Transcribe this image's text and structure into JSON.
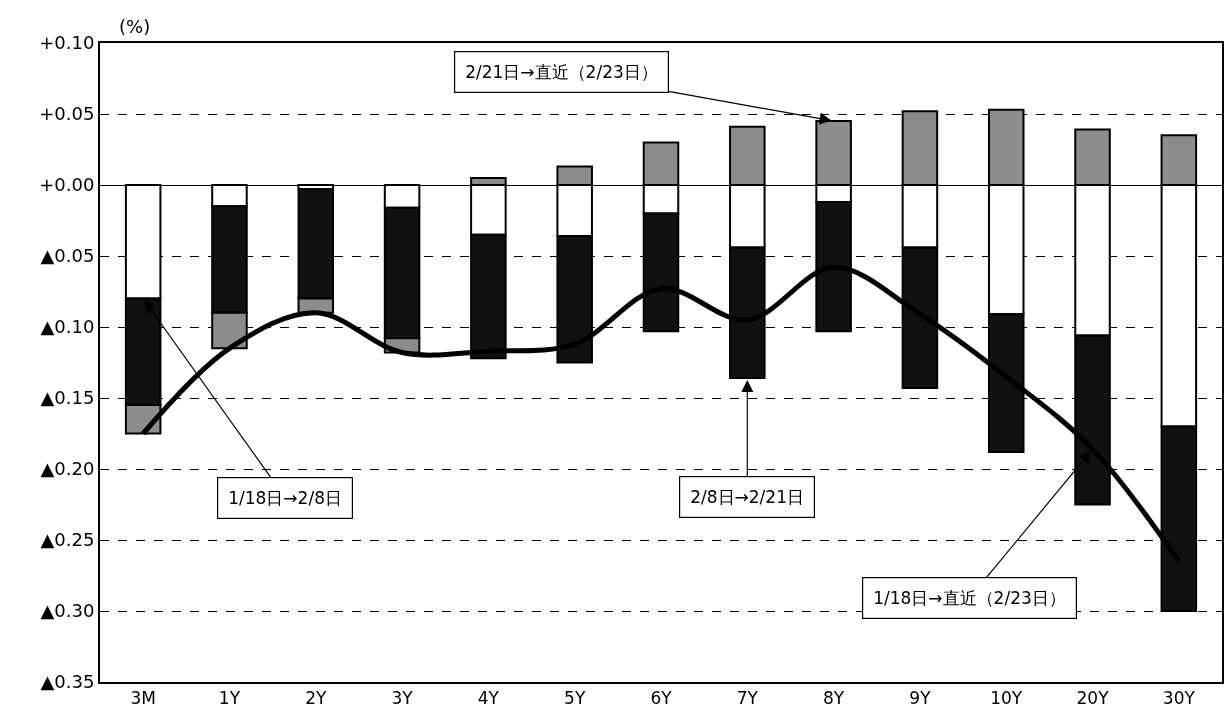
{
  "chart_data": {
    "type": "bar",
    "stacked": true,
    "ylabel": "(%)",
    "categories": [
      "3M",
      "1Y",
      "2Y",
      "3Y",
      "4Y",
      "5Y",
      "6Y",
      "7Y",
      "8Y",
      "9Y",
      "10Y",
      "20Y",
      "30Y"
    ],
    "series": [
      {
        "color": "#ffffff",
        "values": [
          -0.08,
          -0.015,
          -0.003,
          -0.016,
          -0.035,
          -0.036,
          -0.02,
          -0.044,
          -0.012,
          -0.044,
          -0.091,
          -0.106,
          -0.17
        ]
      },
      {
        "color": "#111111",
        "values": [
          -0.075,
          -0.075,
          -0.077,
          -0.092,
          -0.087,
          -0.089,
          -0.083,
          -0.092,
          -0.091,
          -0.099,
          -0.097,
          -0.119,
          -0.13
        ]
      },
      {
        "color": "#8c8c8c",
        "values": [
          -0.02,
          -0.025,
          -0.01,
          -0.01,
          0.005,
          0.013,
          0.03,
          0.041,
          0.045,
          0.052,
          0.053,
          0.039,
          0.035
        ]
      },
      {
        "type": "line",
        "color": "#000000",
        "values": [
          -0.175,
          -0.115,
          -0.09,
          -0.118,
          -0.117,
          -0.112,
          -0.073,
          -0.095,
          -0.058,
          -0.091,
          -0.135,
          -0.186,
          -0.265
        ]
      }
    ],
    "ylim": [
      -0.35,
      0.1
    ],
    "yticks": [
      {
        "value": 0.1,
        "label": "+0.10"
      },
      {
        "value": 0.05,
        "label": "+0.05"
      },
      {
        "value": 0,
        "label": "+0.00"
      },
      {
        "value": -0.05,
        "label": "▲0.05"
      },
      {
        "value": -0.1,
        "label": "▲0.10"
      },
      {
        "value": -0.15,
        "label": "▲0.15"
      },
      {
        "value": -0.2,
        "label": "▲0.20"
      },
      {
        "value": -0.25,
        "label": "▲0.25"
      },
      {
        "value": -0.3,
        "label": "▲0.30"
      },
      {
        "value": -0.35,
        "label": "▲0.35"
      }
    ],
    "grid": "y",
    "marker": "none",
    "legend": false,
    "annotations": [
      {
        "text": "1/18日→2/8日",
        "x": "3M",
        "y": -0.08
      },
      {
        "text": "2/8日→2/21日",
        "x": "7Y",
        "y": -0.136
      },
      {
        "text": "2/21日→直近（2/23日）",
        "x": "8Y",
        "y": 0.045
      },
      {
        "text": "1/18日→直近（2/23日）",
        "x": "20Y",
        "y": -0.186
      }
    ]
  }
}
